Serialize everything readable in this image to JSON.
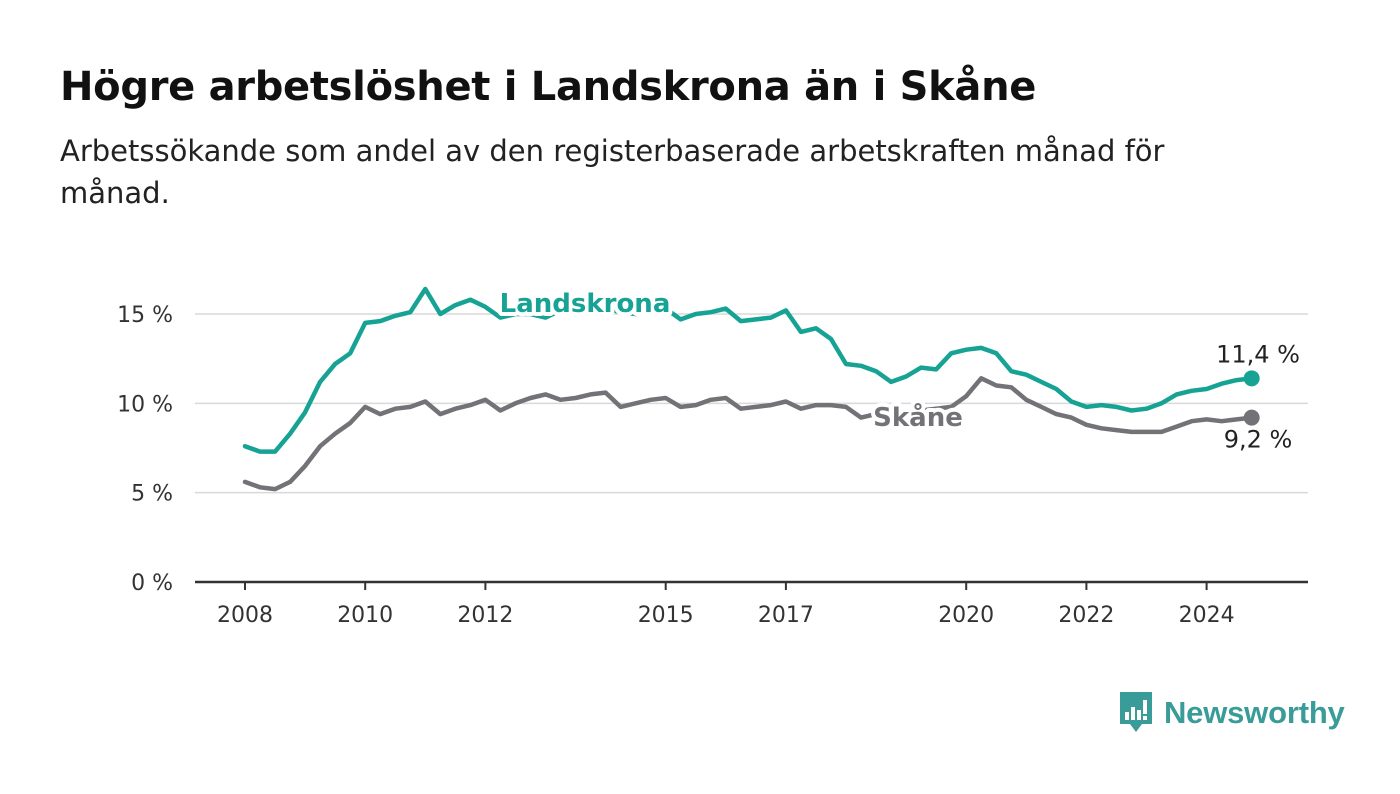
{
  "header": {
    "title": "Högre arbetslöshet i Landskrona än i Skåne",
    "subtitle": "Arbetssökande som andel av den registerbaserade arbetskraften månad för månad."
  },
  "brand": {
    "name": "Newsworthy",
    "icon": "newsworthy-logo-icon",
    "color": "#3a9c98"
  },
  "colors": {
    "landskrona": "#16a394",
    "skane": "#737277",
    "grid": "#d9d9d9",
    "axis": "#333333"
  },
  "chart_data": {
    "type": "line",
    "title": "Högre arbetslöshet i Landskrona än i Skåne",
    "subtitle": "Arbetssökande som andel av den registerbaserade arbetskraften månad för månad.",
    "xlabel": "",
    "ylabel": "",
    "x_range": [
      "2008-01",
      "2025-06"
    ],
    "x_ticks": [
      "2008",
      "2010",
      "2012",
      "2015",
      "2017",
      "2020",
      "2022",
      "2024"
    ],
    "y_ticks": [
      "0 %",
      "5 %",
      "10 %",
      "15 %"
    ],
    "y_tick_values": [
      0,
      5,
      10,
      15
    ],
    "ylim": [
      0,
      17
    ],
    "grid": true,
    "series": [
      {
        "name": "Landskrona",
        "color": "#16a394",
        "end_label": "11,4 %",
        "points": [
          [
            "2008-01",
            7.6
          ],
          [
            "2008-04",
            7.3
          ],
          [
            "2008-07",
            7.3
          ],
          [
            "2008-10",
            8.3
          ],
          [
            "2009-01",
            9.5
          ],
          [
            "2009-04",
            11.2
          ],
          [
            "2009-07",
            12.2
          ],
          [
            "2009-10",
            12.8
          ],
          [
            "2010-01",
            14.5
          ],
          [
            "2010-04",
            14.6
          ],
          [
            "2010-07",
            14.9
          ],
          [
            "2010-10",
            15.1
          ],
          [
            "2011-01",
            16.4
          ],
          [
            "2011-04",
            15.0
          ],
          [
            "2011-07",
            15.5
          ],
          [
            "2011-10",
            15.8
          ],
          [
            "2012-01",
            15.4
          ],
          [
            "2012-04",
            14.8
          ],
          [
            "2012-07",
            15.0
          ],
          [
            "2012-10",
            15.0
          ],
          [
            "2013-01",
            14.8
          ],
          [
            "2013-04",
            15.2
          ],
          [
            "2013-07",
            15.3
          ],
          [
            "2013-10",
            15.5
          ],
          [
            "2014-01",
            15.3
          ],
          [
            "2014-04",
            15.1
          ],
          [
            "2014-07",
            15.0
          ],
          [
            "2014-10",
            15.2
          ],
          [
            "2015-01",
            15.3
          ],
          [
            "2015-04",
            14.7
          ],
          [
            "2015-07",
            15.0
          ],
          [
            "2015-10",
            15.1
          ],
          [
            "2016-01",
            15.3
          ],
          [
            "2016-04",
            14.6
          ],
          [
            "2016-07",
            14.7
          ],
          [
            "2016-10",
            14.8
          ],
          [
            "2017-01",
            15.2
          ],
          [
            "2017-04",
            14.0
          ],
          [
            "2017-07",
            14.2
          ],
          [
            "2017-10",
            13.6
          ],
          [
            "2018-01",
            12.2
          ],
          [
            "2018-04",
            12.1
          ],
          [
            "2018-07",
            11.8
          ],
          [
            "2018-10",
            11.2
          ],
          [
            "2019-01",
            11.5
          ],
          [
            "2019-04",
            12.0
          ],
          [
            "2019-07",
            11.9
          ],
          [
            "2019-10",
            12.8
          ],
          [
            "2020-01",
            13.0
          ],
          [
            "2020-04",
            13.1
          ],
          [
            "2020-07",
            12.8
          ],
          [
            "2020-10",
            11.8
          ],
          [
            "2021-01",
            11.6
          ],
          [
            "2021-04",
            11.2
          ],
          [
            "2021-07",
            10.8
          ],
          [
            "2021-10",
            10.1
          ],
          [
            "2022-01",
            9.8
          ],
          [
            "2022-04",
            9.9
          ],
          [
            "2022-07",
            9.8
          ],
          [
            "2022-10",
            9.6
          ],
          [
            "2023-01",
            9.7
          ],
          [
            "2023-04",
            10.0
          ],
          [
            "2023-07",
            10.5
          ],
          [
            "2023-10",
            10.7
          ],
          [
            "2024-01",
            10.8
          ],
          [
            "2024-04",
            11.1
          ],
          [
            "2024-07",
            11.3
          ],
          [
            "2024-10",
            11.4
          ]
        ]
      },
      {
        "name": "Skåne",
        "color": "#737277",
        "end_label": "9,2 %",
        "points": [
          [
            "2008-01",
            5.6
          ],
          [
            "2008-04",
            5.3
          ],
          [
            "2008-07",
            5.2
          ],
          [
            "2008-10",
            5.6
          ],
          [
            "2009-01",
            6.5
          ],
          [
            "2009-04",
            7.6
          ],
          [
            "2009-07",
            8.3
          ],
          [
            "2009-10",
            8.9
          ],
          [
            "2010-01",
            9.8
          ],
          [
            "2010-04",
            9.4
          ],
          [
            "2010-07",
            9.7
          ],
          [
            "2010-10",
            9.8
          ],
          [
            "2011-01",
            10.1
          ],
          [
            "2011-04",
            9.4
          ],
          [
            "2011-07",
            9.7
          ],
          [
            "2011-10",
            9.9
          ],
          [
            "2012-01",
            10.2
          ],
          [
            "2012-04",
            9.6
          ],
          [
            "2012-07",
            10.0
          ],
          [
            "2012-10",
            10.3
          ],
          [
            "2013-01",
            10.5
          ],
          [
            "2013-04",
            10.2
          ],
          [
            "2013-07",
            10.3
          ],
          [
            "2013-10",
            10.5
          ],
          [
            "2014-01",
            10.6
          ],
          [
            "2014-04",
            9.8
          ],
          [
            "2014-07",
            10.0
          ],
          [
            "2014-10",
            10.2
          ],
          [
            "2015-01",
            10.3
          ],
          [
            "2015-04",
            9.8
          ],
          [
            "2015-07",
            9.9
          ],
          [
            "2015-10",
            10.2
          ],
          [
            "2016-01",
            10.3
          ],
          [
            "2016-04",
            9.7
          ],
          [
            "2016-07",
            9.8
          ],
          [
            "2016-10",
            9.9
          ],
          [
            "2017-01",
            10.1
          ],
          [
            "2017-04",
            9.7
          ],
          [
            "2017-07",
            9.9
          ],
          [
            "2017-10",
            9.9
          ],
          [
            "2018-01",
            9.8
          ],
          [
            "2018-04",
            9.2
          ],
          [
            "2018-07",
            9.4
          ],
          [
            "2018-10",
            9.6
          ],
          [
            "2019-01",
            9.5
          ],
          [
            "2019-04",
            9.6
          ],
          [
            "2019-07",
            9.7
          ],
          [
            "2019-10",
            9.8
          ],
          [
            "2020-01",
            10.4
          ],
          [
            "2020-04",
            11.4
          ],
          [
            "2020-07",
            11.0
          ],
          [
            "2020-10",
            10.9
          ],
          [
            "2021-01",
            10.2
          ],
          [
            "2021-04",
            9.8
          ],
          [
            "2021-07",
            9.4
          ],
          [
            "2021-10",
            9.2
          ],
          [
            "2022-01",
            8.8
          ],
          [
            "2022-04",
            8.6
          ],
          [
            "2022-07",
            8.5
          ],
          [
            "2022-10",
            8.4
          ],
          [
            "2023-01",
            8.4
          ],
          [
            "2023-04",
            8.4
          ],
          [
            "2023-07",
            8.7
          ],
          [
            "2023-10",
            9.0
          ],
          [
            "2024-01",
            9.1
          ],
          [
            "2024-04",
            9.0
          ],
          [
            "2024-07",
            9.1
          ],
          [
            "2024-10",
            9.2
          ]
        ]
      }
    ]
  }
}
